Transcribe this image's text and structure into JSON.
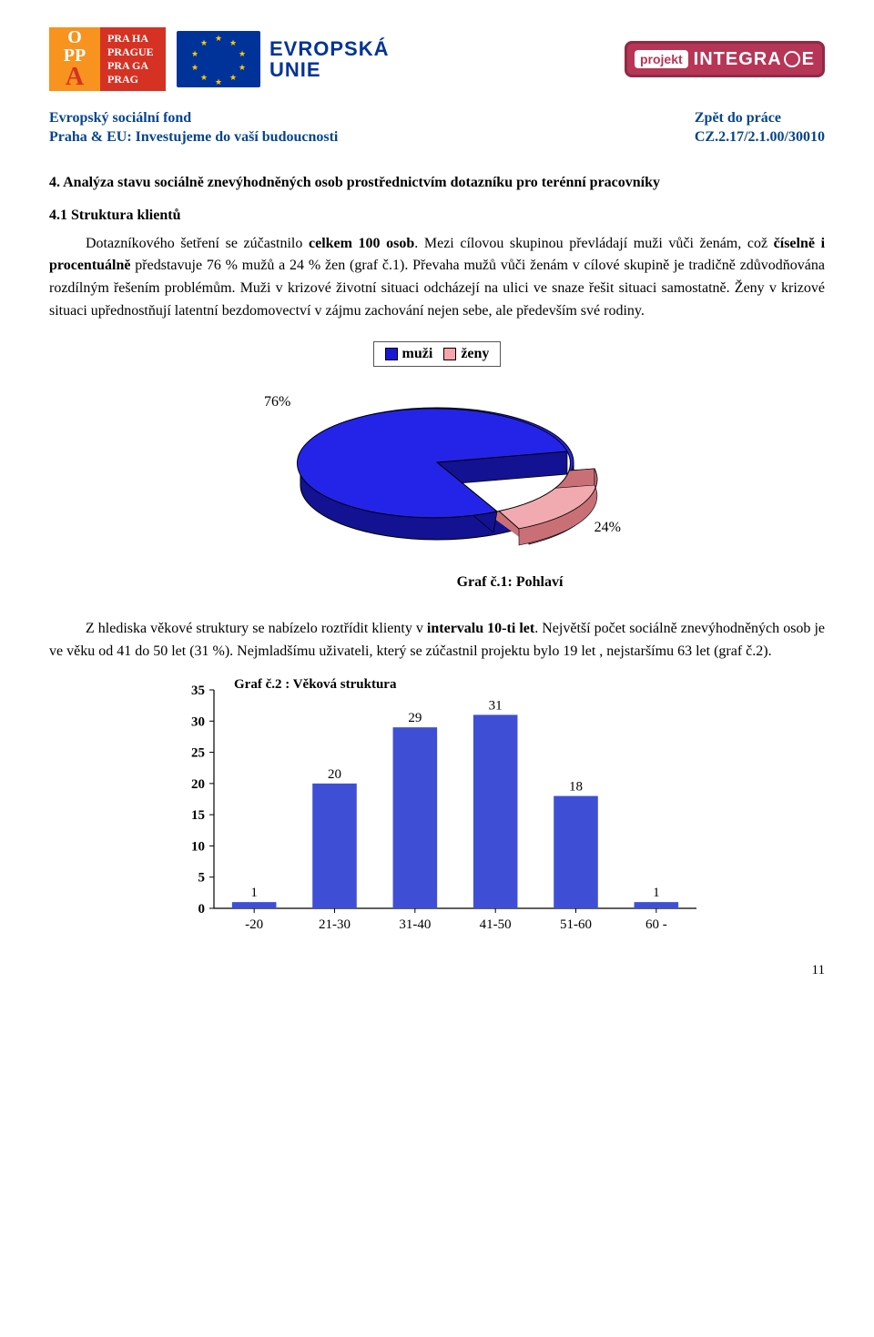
{
  "logos": {
    "oppa": {
      "line1": "O",
      "line2": "PP",
      "line3": "A",
      "city1": "PRA HA",
      "city2": "PRAGUE",
      "city3": "PRA GA",
      "city4": "PRAG"
    },
    "eu": {
      "line1": "EVROPSKÁ",
      "line2": "UNIE"
    },
    "integrace": {
      "proj": "projekt",
      "txt1": "INTEGRA",
      "txt2": "E"
    }
  },
  "header": {
    "left1": "Evropský sociální fond",
    "left2": "Praha & EU: Investujeme do vaší budoucnosti",
    "right1": "Zpět do práce",
    "right2": "CZ.2.17/2.1.00/30010",
    "color": "#05458c"
  },
  "headings": {
    "h4": "4. Analýza stavu sociálně znevýhodněných osob prostřednictvím dotazníku pro terénní pracovníky",
    "h41": "4.1 Struktura klientů"
  },
  "para1": {
    "seg1": "Dotazníkového šetření se zúčastnilo ",
    "bold1": "celkem 100 osob",
    "seg2": ". Mezi cílovou skupinou převládají muži vůči ženám, což ",
    "bold2": "číselně i procentuálně",
    "seg3": " představuje 76 % mužů a 24 % žen (graf č.1). Převaha mužů vůči ženám v cílové skupině je tradičně zdůvodňována rozdílným řešením problémům. Muži v krizové životní situaci odcházejí na ulici ve snaze řešit situaci samostatně. Ženy v krizové situaci upřednostňují latentní bezdomovectví v zájmu zachování nejen sebe, ale především své rodiny."
  },
  "legend": {
    "l1": "muži",
    "l2": "ženy",
    "c1": "#1818d6",
    "c2": "#f5a5ab"
  },
  "pie": {
    "vals": [
      76,
      24
    ],
    "labels": [
      "76%",
      "24%"
    ],
    "colors": {
      "muzi_top": "#2424e8",
      "muzi_side": "#121292",
      "zeny_top": "#f1aab0",
      "zeny_side": "#c97077",
      "outline": "#000000"
    },
    "caption": "Graf č.1: Pohlaví"
  },
  "para2": {
    "seg1": "Z hlediska věkové struktury se nabízelo roztřídit klienty v ",
    "bold1": "intervalu 10-ti let",
    "seg2": ". Největší počet sociálně znevýhodněných osob je ve věku od 41 do 50 let (31 %). Nejmladšímu uživateli, který se zúčastnil projektu bylo 19 let , nejstaršímu 63 let (graf č.2)."
  },
  "bar": {
    "type": "bar",
    "title": "Graf č.2 : Věková struktura",
    "categories": [
      "-20",
      "21-30",
      "31-40",
      "41-50",
      "51-60",
      "60 -"
    ],
    "values": [
      1,
      20,
      29,
      31,
      18,
      1
    ],
    "bar_color": "#3e4fd6",
    "value_color": "#000000",
    "title_fontsize": 15,
    "ylim": [
      0,
      35
    ],
    "ytick_step": 5,
    "axis_color": "#000000",
    "bar_width": 0.55,
    "background": "#ffffff",
    "tick_fontsize": 15
  },
  "page_number": "11"
}
